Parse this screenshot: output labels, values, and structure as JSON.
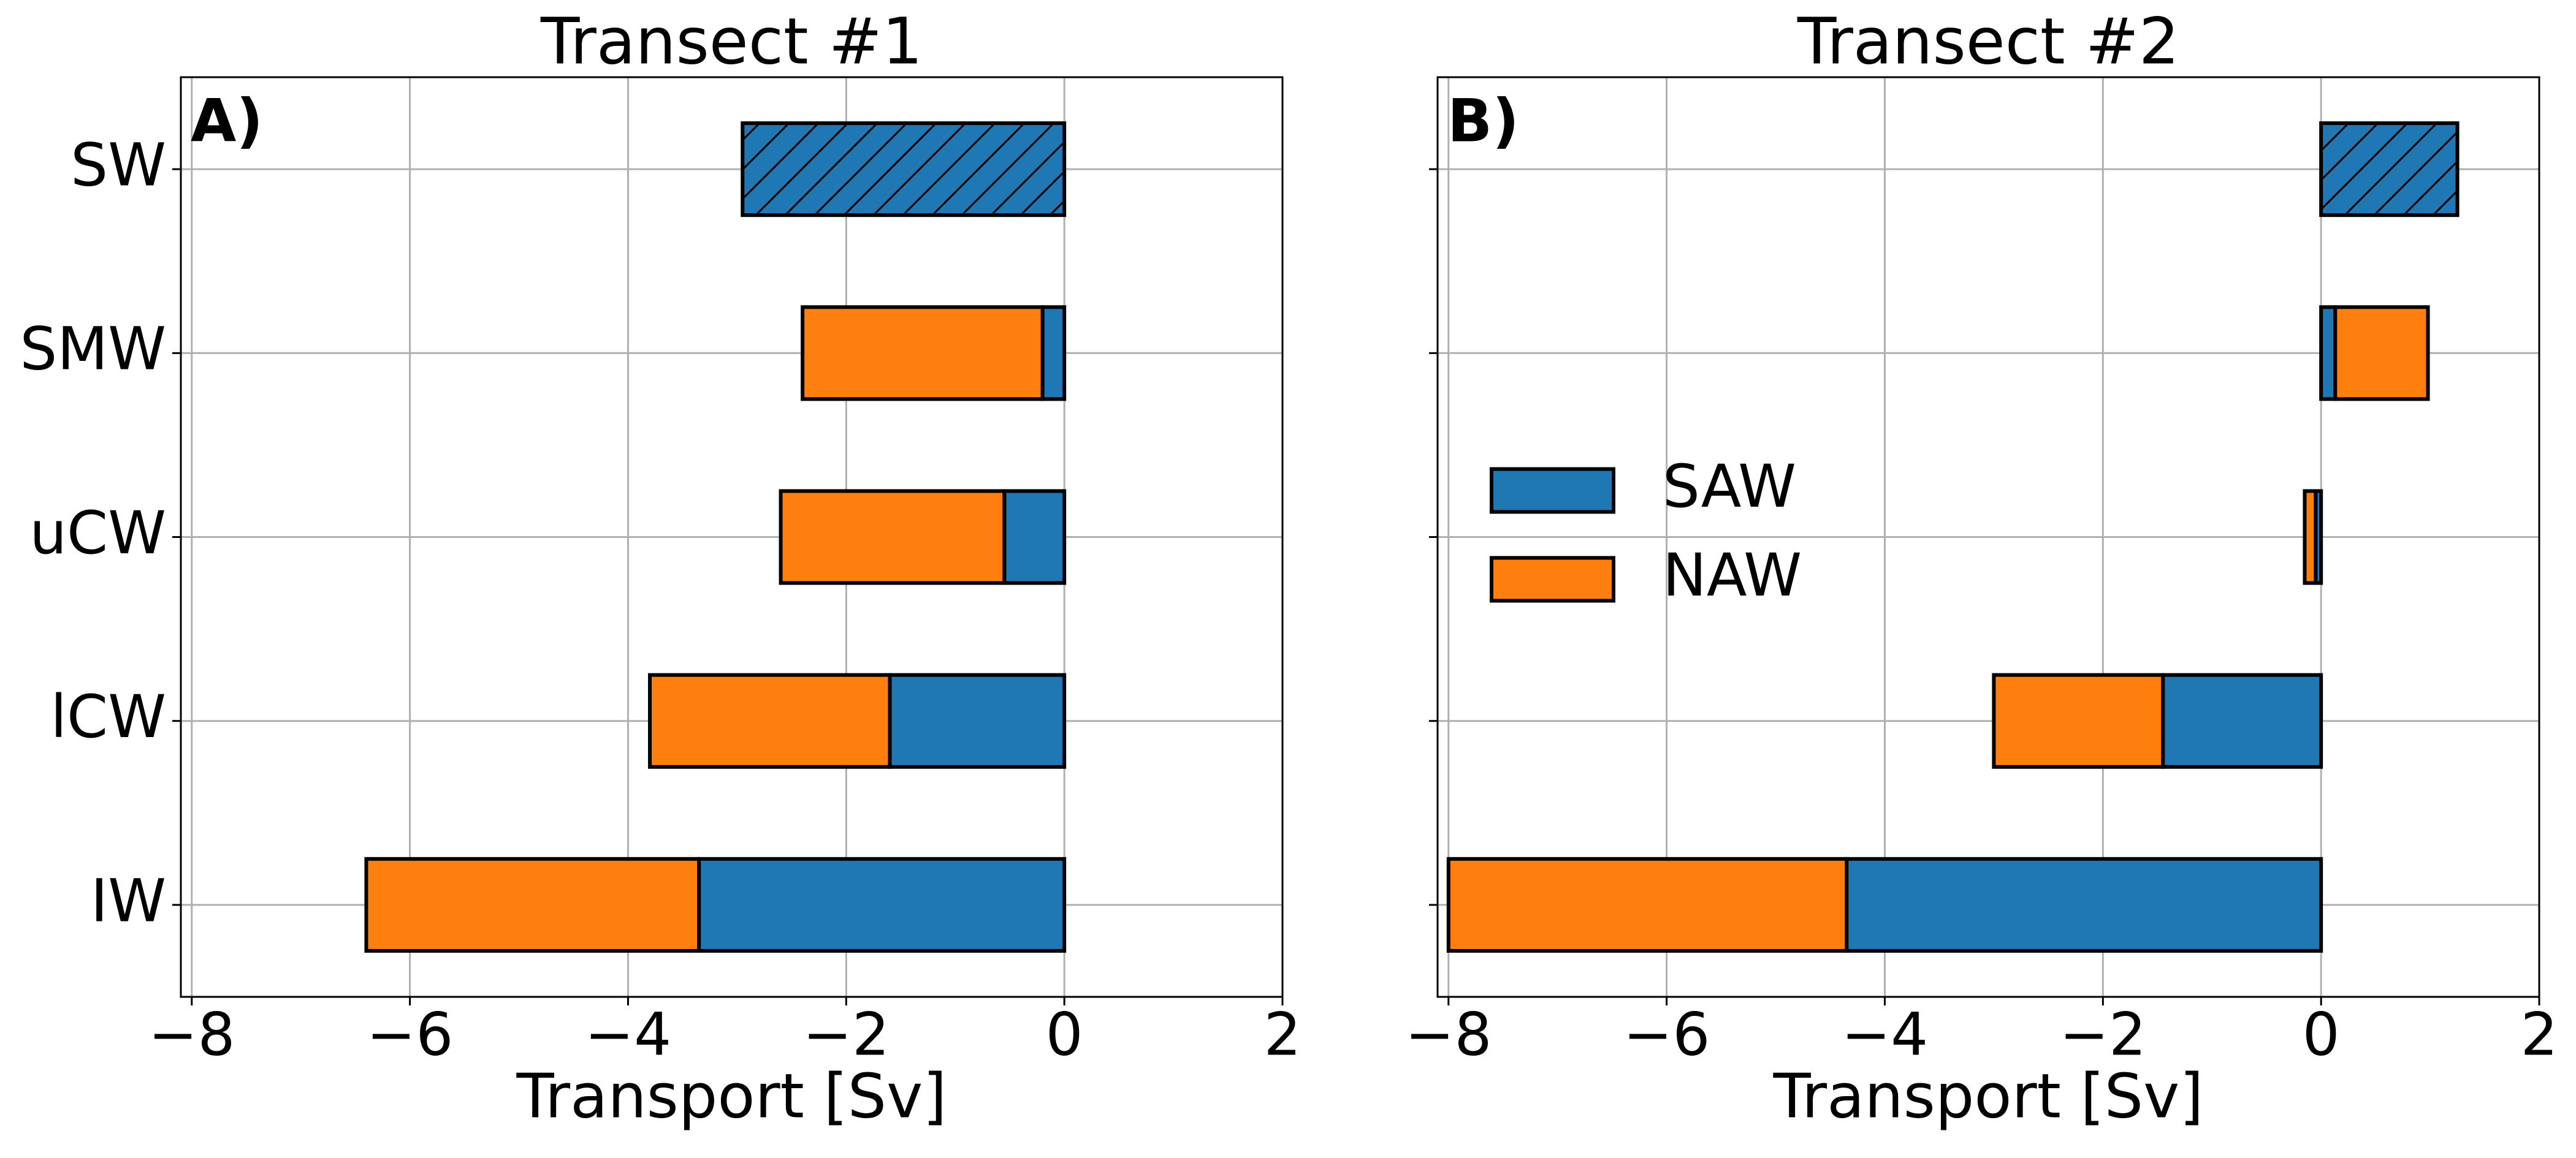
{
  "chart_data": [
    {
      "type": "barh",
      "title": "Transect #1",
      "x_label": "Transport [Sv]",
      "annotation": "A)",
      "categories": [
        "SW",
        "SMW",
        "uCW",
        "lCW",
        "IW"
      ],
      "stacked": true,
      "grid": true,
      "show_category_labels": true,
      "series": [
        {
          "name": "SAW",
          "color": "#1f77b4",
          "values": [
            -2.95,
            -0.2,
            -0.55,
            -1.6,
            -3.35
          ],
          "hatch": [
            "/",
            null,
            null,
            null,
            null
          ]
        },
        {
          "name": "NAW",
          "color": "#ff7f0e",
          "values": [
            null,
            -2.2,
            -2.05,
            -2.2,
            -3.05
          ]
        }
      ],
      "xlim": [
        -8.1,
        2
      ],
      "xticks": [
        {
          "value": -8,
          "label": "−8"
        },
        {
          "value": -6,
          "label": "−6"
        },
        {
          "value": -4,
          "label": "−4"
        },
        {
          "value": -2,
          "label": "−2"
        },
        0,
        2
      ],
      "legend": false
    },
    {
      "type": "barh",
      "title": "Transect #2",
      "x_label": "Transport [Sv]",
      "annotation": "B)",
      "categories": [
        "SW",
        "SMW",
        "uCW",
        "lCW",
        "IW"
      ],
      "stacked": true,
      "grid": true,
      "show_category_labels": false,
      "series": [
        {
          "name": "SAW",
          "color": "#1f77b4",
          "values": [
            1.25,
            0.13,
            -0.05,
            -1.45,
            -4.35
          ],
          "hatch": [
            "/",
            null,
            null,
            null,
            null
          ]
        },
        {
          "name": "NAW",
          "color": "#ff7f0e",
          "values": [
            null,
            0.85,
            -0.1,
            -1.55,
            -3.65
          ]
        }
      ],
      "xlim": [
        -8.1,
        2
      ],
      "xticks": [
        {
          "value": -8,
          "label": "−8"
        },
        {
          "value": -6,
          "label": "−6"
        },
        {
          "value": -4,
          "label": "−4"
        },
        {
          "value": -2,
          "label": "−2"
        },
        0,
        2
      ],
      "legend": true,
      "legend_location": "center left"
    }
  ]
}
